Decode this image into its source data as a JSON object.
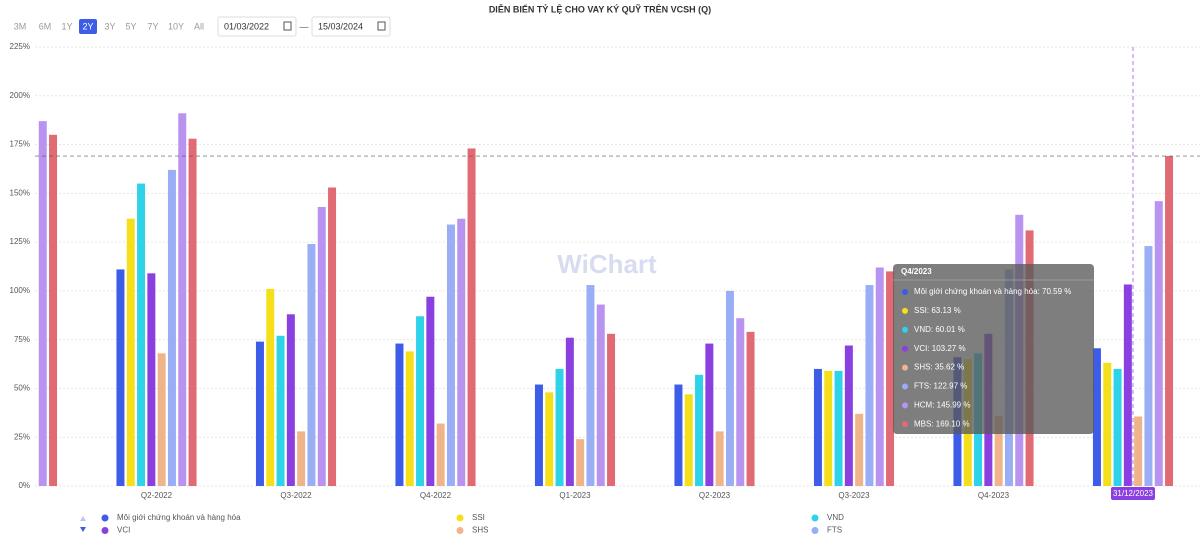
{
  "toolbar": {
    "ranges": [
      "3M",
      "6M",
      "1Y",
      "2Y",
      "3Y",
      "5Y",
      "7Y",
      "10Y",
      "All"
    ],
    "active": "2Y",
    "from": "01/03/2022",
    "separator": "—",
    "to": "15/03/2024"
  },
  "watermark": "WiChart",
  "chart_data": {
    "type": "bar",
    "title": "DIỄN BIẾN TỶ LỆ CHO VAY KÝ QUỸ TRÊN VCSH (Q)",
    "categories": [
      null,
      "Q2-2022",
      "Q3-2022",
      "Q4-2022",
      "Q1-2023",
      "Q2-2023",
      "Q3-2023",
      "Q4-2023",
      null
    ],
    "series": [
      {
        "name": "Môi giới chứng khoán và hàng hóa",
        "color": "#3d5ce8",
        "values": [
          null,
          111,
          74,
          73,
          52,
          52,
          60,
          66,
          70.59
        ]
      },
      {
        "name": "SSI",
        "color": "#f5df1b",
        "values": [
          null,
          137,
          101,
          69,
          48,
          47,
          59,
          65,
          63.13
        ]
      },
      {
        "name": "VND",
        "color": "#2ed3ea",
        "values": [
          null,
          155,
          77,
          87,
          60,
          57,
          59,
          68,
          60.01
        ]
      },
      {
        "name": "VCI",
        "color": "#8a3fe0",
        "values": [
          null,
          109,
          88,
          97,
          76,
          73,
          72,
          78,
          103.27
        ]
      },
      {
        "name": "SHS",
        "color": "#f0b48a",
        "values": [
          null,
          68,
          28,
          32,
          24,
          28,
          37,
          36,
          35.62
        ]
      },
      {
        "name": "FTS",
        "color": "#9aaef5",
        "values": [
          null,
          162,
          124,
          134,
          103,
          100,
          103,
          111,
          122.97
        ]
      },
      {
        "name": "HCM",
        "color": "#b894f0",
        "values": [
          187,
          191,
          143,
          137,
          93,
          86,
          112,
          139,
          145.99
        ]
      },
      {
        "name": "MBS",
        "color": "#e06b74",
        "values": [
          180,
          178,
          153,
          173,
          78,
          79,
          110,
          131,
          169.1
        ]
      }
    ],
    "ylim": [
      0,
      225
    ],
    "yticks": [
      {
        "value": 0,
        "label": "0%"
      },
      {
        "value": 25,
        "label": "25%"
      },
      {
        "value": 50,
        "label": "50%"
      },
      {
        "value": 75,
        "label": "75%"
      },
      {
        "value": 100,
        "label": "100%"
      },
      {
        "value": 125,
        "label": "125%"
      },
      {
        "value": 150,
        "label": "150%"
      },
      {
        "value": 175,
        "label": "175%"
      },
      {
        "value": 200,
        "label": "200%"
      },
      {
        "value": 225,
        "label": "225%"
      }
    ],
    "grid": true,
    "legend_visible": 6,
    "crosshair_label": "31/12/2023",
    "tooltip": {
      "title": "Q4/2023",
      "lines": [
        "Môi giới chứng khoán và hàng hóa: 70.59 %",
        "SSI: 63.13 %",
        "VND: 60.01 %",
        "VCI: 103.27 %",
        "SHS: 35.62 %",
        "FTS: 122.97 %",
        "HCM: 145.99 %",
        "MBS: 169.10 %"
      ]
    }
  }
}
